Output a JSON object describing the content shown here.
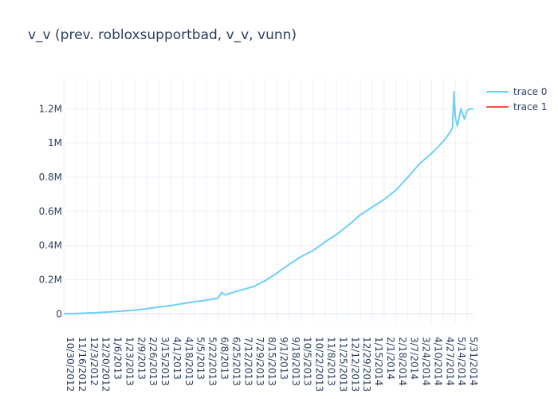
{
  "chart_data": {
    "type": "line",
    "title": "v_v (prev. robloxsupportbad, v_v, vunn)",
    "xlabel": "",
    "ylabel": "",
    "x_type": "date",
    "x_range": [
      "2012-10-30",
      "2014-06-09"
    ],
    "ylim": [
      -50000,
      1370000
    ],
    "y_ticks": [
      0,
      200000,
      400000,
      600000,
      800000,
      1000000,
      1200000
    ],
    "y_tick_labels": [
      "0",
      "0.2M",
      "0.4M",
      "0.6M",
      "0.8M",
      "1M",
      "1.2M"
    ],
    "x_tick_labels": [
      "10/30/2012",
      "11/16/2012",
      "12/3/2012",
      "12/20/2012",
      "1/6/2013",
      "1/23/2013",
      "2/9/2013",
      "2/26/2013",
      "3/15/2013",
      "4/1/2013",
      "4/18/2013",
      "5/5/2013",
      "5/22/2013",
      "6/8/2013",
      "6/25/2013",
      "7/12/2013",
      "7/29/2013",
      "8/15/2013",
      "9/1/2013",
      "9/18/2013",
      "10/5/2013",
      "10/22/2013",
      "11/8/2013",
      "11/25/2013",
      "12/12/2013",
      "12/29/2013",
      "1/15/2014",
      "2/1/2014",
      "2/18/2014",
      "3/7/2014",
      "3/24/2014",
      "4/10/2014",
      "4/27/2014",
      "5/14/2014",
      "5/31/2014"
    ],
    "grid": true,
    "legend_position": "top-right",
    "series": [
      {
        "name": "trace 0",
        "color": "#6ecff6",
        "x": [
          "2012-10-30",
          "2012-11-16",
          "2012-12-03",
          "2012-12-20",
          "2013-01-06",
          "2013-01-23",
          "2013-02-09",
          "2013-02-26",
          "2013-03-15",
          "2013-04-01",
          "2013-04-18",
          "2013-05-05",
          "2013-05-22",
          "2013-06-08",
          "2013-06-13",
          "2013-06-19",
          "2013-06-25",
          "2013-07-12",
          "2013-07-29",
          "2013-08-15",
          "2013-09-01",
          "2013-09-18",
          "2013-10-05",
          "2013-10-22",
          "2013-11-08",
          "2013-11-25",
          "2013-12-12",
          "2013-12-29",
          "2014-01-15",
          "2014-02-01",
          "2014-02-18",
          "2014-03-07",
          "2014-03-24",
          "2014-04-10",
          "2014-04-27",
          "2014-05-06",
          "2014-05-10",
          "2014-05-12",
          "2014-05-14",
          "2014-05-17",
          "2014-05-22",
          "2014-05-27",
          "2014-05-31",
          "2014-06-04",
          "2014-06-09"
        ],
        "y": [
          0,
          2000,
          5000,
          8000,
          12000,
          17000,
          22000,
          30000,
          40000,
          48000,
          60000,
          70000,
          80000,
          92000,
          125000,
          110000,
          120000,
          140000,
          160000,
          195000,
          240000,
          290000,
          335000,
          370000,
          420000,
          465000,
          520000,
          580000,
          625000,
          670000,
          725000,
          800000,
          880000,
          940000,
          1010000,
          1060000,
          1090000,
          1300000,
          1150000,
          1100000,
          1200000,
          1140000,
          1190000,
          1200000,
          1200000
        ]
      },
      {
        "name": "trace 1",
        "color": "#ef553b",
        "x": [],
        "y": []
      }
    ]
  }
}
